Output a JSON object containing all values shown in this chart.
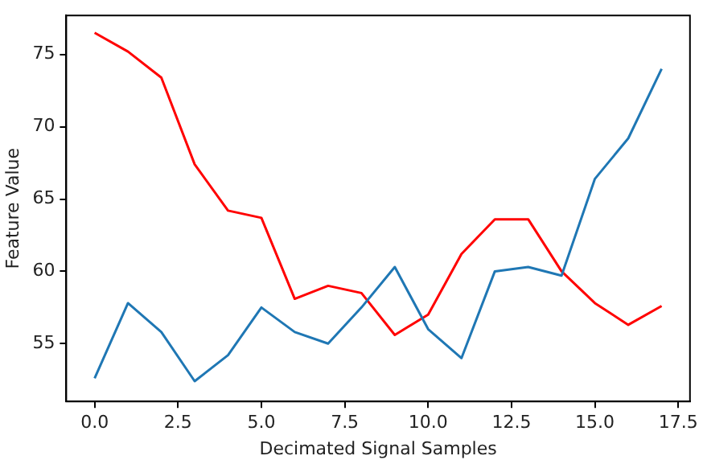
{
  "chart_data": {
    "type": "line",
    "xlabel": "Decimated Signal Samples",
    "ylabel": "Feature Value",
    "x": [
      0,
      1,
      2,
      3,
      4,
      5,
      6,
      7,
      8,
      9,
      10,
      11,
      12,
      13,
      14,
      15,
      16,
      17
    ],
    "series": [
      {
        "color": "#1f77b4",
        "values": [
          52.6,
          57.8,
          55.8,
          52.4,
          54.2,
          57.5,
          55.8,
          55.0,
          57.5,
          60.3,
          56.0,
          54.0,
          60.0,
          60.3,
          59.7,
          66.4,
          69.2,
          74.0
        ]
      },
      {
        "color": "#ff0000",
        "values": [
          76.5,
          75.2,
          73.4,
          67.4,
          64.2,
          63.7,
          58.1,
          59.0,
          58.5,
          55.6,
          57.0,
          61.2,
          63.6,
          63.6,
          60.0,
          57.8,
          56.3,
          57.6
        ]
      }
    ],
    "xlim": [
      -0.85,
      17.85
    ],
    "xticks": [
      {
        "value": 0,
        "label": "0.0"
      },
      {
        "value": 2.5,
        "label": "2.5"
      },
      {
        "value": 5,
        "label": "5.0"
      },
      {
        "value": 7.5,
        "label": "7.5"
      },
      {
        "value": 10,
        "label": "10.0"
      },
      {
        "value": 12.5,
        "label": "12.5"
      },
      {
        "value": 15,
        "label": "15.0"
      },
      {
        "value": 17.5,
        "label": "17.5"
      }
    ],
    "ylim": [
      51.0,
      77.7
    ],
    "yticks": [
      55,
      60,
      65,
      70,
      75
    ],
    "grid": false,
    "legend": false,
    "marker": "none",
    "line_style": "solid"
  }
}
